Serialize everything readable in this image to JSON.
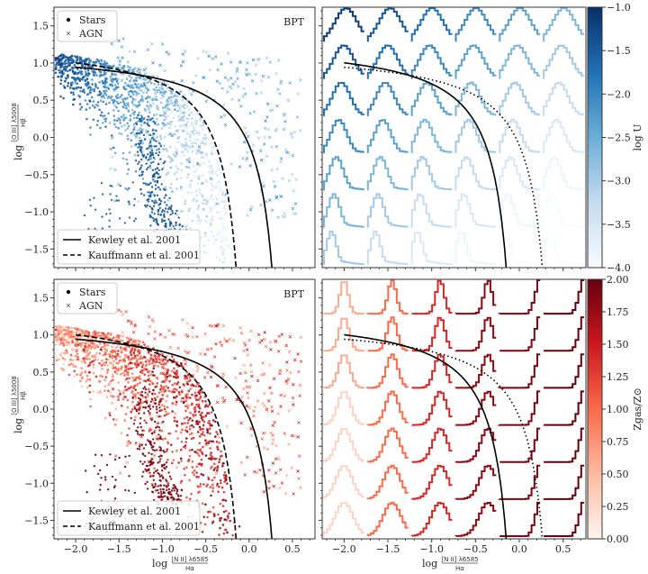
{
  "chart_data": [
    {
      "type": "scatter",
      "panel": "top-left",
      "annotation": "BPT",
      "xlabel": {
        "prefix": "log",
        "num": "[N II] λ6585",
        "den": "Hα"
      },
      "ylabel": {
        "prefix": "log",
        "num": "[O III] λ5008",
        "den": "Hβ"
      },
      "xlim": [
        -2.25,
        0.76
      ],
      "ylim": [
        -1.75,
        1.75
      ],
      "xticks": [
        "−2.0",
        "−1.5",
        "−1.0",
        "−0.5",
        "0.0",
        "0.5"
      ],
      "xtick_values": [
        -2.0,
        -1.5,
        -1.0,
        -0.5,
        0.0,
        0.5
      ],
      "yticks": [
        "1.5",
        "1.0",
        "0.5",
        "0.0",
        "−0.5",
        "−1.0",
        "−1.5"
      ],
      "ytick_values": [
        1.5,
        1.0,
        0.5,
        0.0,
        -0.5,
        -1.0,
        -1.5
      ],
      "marker_legend": [
        {
          "label": "Stars",
          "marker": "dot"
        },
        {
          "label": "AGN",
          "marker": "x"
        }
      ],
      "line_legend": [
        {
          "label": "Kewley et al. 2001",
          "style": "solid"
        },
        {
          "label": "Kauffmann et al. 2001",
          "style": "dashed"
        }
      ],
      "curves": {
        "kewley": {
          "a": 0.61,
          "b": 0.47,
          "c": 1.19
        },
        "kauffmann": {
          "a": 0.61,
          "b": 0.05,
          "c": 1.3
        }
      },
      "colormap": "Blues",
      "color_variable": "log U"
    },
    {
      "type": "line",
      "panel": "top-right",
      "description_grid": {
        "rows": 7,
        "cols": 6
      },
      "xticks": [
        "−2.0",
        "−1.5",
        "−1.0",
        "−0.5",
        "0.0",
        "0.5"
      ],
      "colorbar": {
        "label": "log U",
        "range": [
          -4.0,
          -1.0
        ],
        "ticks": [
          "−1.0",
          "−1.5",
          "−2.0",
          "−2.5",
          "−3.0",
          "−3.5",
          "−4.0"
        ],
        "tick_values": [
          -1.0,
          -1.5,
          -2.0,
          -2.5,
          -3.0,
          -3.5,
          -4.0
        ]
      }
    },
    {
      "type": "scatter",
      "panel": "bottom-left",
      "annotation": "BPT",
      "xticks": [
        "−2.0",
        "−1.5",
        "−1.0",
        "−0.5",
        "0.0",
        "0.5"
      ],
      "yticks": [
        "1.5",
        "1.0",
        "0.5",
        "0.0",
        "−0.5",
        "−1.0",
        "−1.5"
      ],
      "marker_legend": [
        {
          "label": "Stars",
          "marker": "dot"
        },
        {
          "label": "AGN",
          "marker": "x"
        }
      ],
      "line_legend": [
        {
          "label": "Kewley et al. 2001",
          "style": "solid"
        },
        {
          "label": "Kauffmann et al. 2001",
          "style": "dashed"
        }
      ],
      "colormap": "Reds",
      "color_variable": "Z_gas/Z_sun"
    },
    {
      "type": "line",
      "panel": "bottom-right",
      "description_grid": {
        "rows": 7,
        "cols": 6
      },
      "xticks": [
        "−2.0",
        "−1.5",
        "−1.0",
        "−0.5",
        "0.0",
        "0.5"
      ],
      "colorbar": {
        "label": "Zgas/Z⊙",
        "range": [
          0.0,
          2.0
        ],
        "ticks": [
          "2.00",
          "1.75",
          "1.50",
          "1.25",
          "1.00",
          "0.75",
          "0.50",
          "0.25",
          "0.00"
        ],
        "tick_values": [
          2.0,
          1.75,
          1.5,
          1.25,
          1.0,
          0.75,
          0.5,
          0.25,
          0.0
        ]
      }
    }
  ],
  "colors": {
    "blues_dark": "#08306b",
    "blues_light": "#f7fbff",
    "reds_dark": "#67000d",
    "reds_light": "#fff5f0"
  }
}
